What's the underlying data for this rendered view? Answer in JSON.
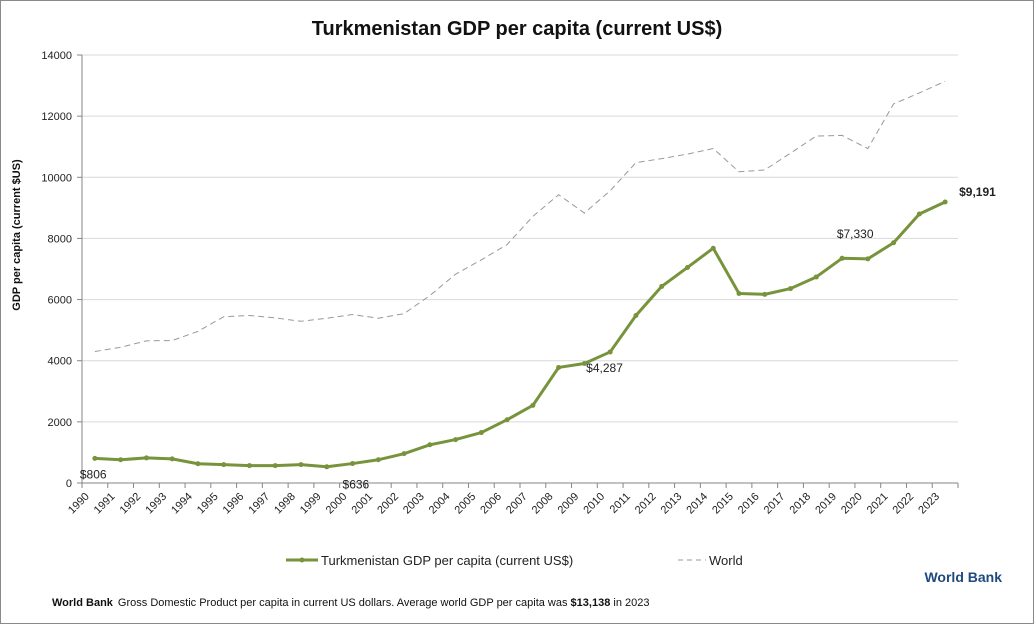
{
  "chart_data": {
    "type": "line",
    "title": "Turkmenistan GDP per capita (current US$)",
    "xlabel": "",
    "ylabel": "GDP per capita (current $US)",
    "ylim": [
      0,
      14000
    ],
    "yticks": [
      0,
      2000,
      4000,
      6000,
      8000,
      10000,
      12000,
      14000
    ],
    "grid": true,
    "legend_position": "bottom",
    "categories": [
      "1990",
      "1991",
      "1992",
      "1993",
      "1994",
      "1995",
      "1996",
      "1997",
      "1998",
      "1999",
      "2000",
      "2001",
      "2002",
      "2003",
      "2004",
      "2005",
      "2006",
      "2007",
      "2008",
      "2009",
      "2010",
      "2011",
      "2012",
      "2013",
      "2014",
      "2015",
      "2016",
      "2017",
      "2018",
      "2019",
      "2020",
      "2021",
      "2022",
      "2023"
    ],
    "series": [
      {
        "name": "Turkmenistan GDP per capita (current US$)",
        "color": "#77933c",
        "style": "solid-markers",
        "values": [
          806,
          760,
          820,
          790,
          630,
          600,
          570,
          570,
          600,
          530,
          636,
          760,
          960,
          1250,
          1420,
          1650,
          2070,
          2540,
          3780,
          3910,
          4287,
          5480,
          6430,
          7050,
          7680,
          6200,
          6170,
          6360,
          6740,
          7350,
          7330,
          7860,
          8800,
          9191
        ]
      },
      {
        "name": "World",
        "color": "#999999",
        "style": "dashed",
        "values": [
          4300,
          4440,
          4650,
          4660,
          4960,
          5440,
          5480,
          5400,
          5290,
          5390,
          5510,
          5390,
          5540,
          6130,
          6830,
          7300,
          7800,
          8720,
          9430,
          8830,
          9560,
          10480,
          10610,
          10760,
          10940,
          10180,
          10240,
          10790,
          11350,
          11370,
          10940,
          12400,
          12760,
          13138
        ]
      }
    ],
    "annotations": [
      {
        "text": "$806",
        "category": "1990"
      },
      {
        "text": "$636",
        "category": "2000"
      },
      {
        "text": "$4,287",
        "category": "2010"
      },
      {
        "text": "$7,330",
        "category": "2020"
      },
      {
        "text": "$9,191",
        "category": "2023",
        "bold": true
      }
    ]
  },
  "source_label": "World Bank",
  "footer": {
    "source": "World Bank",
    "text": "Gross Domestic Product per capita in current US dollars.  Average world GDP per capita was ",
    "highlight": "$13,138",
    "suffix": " in 2023"
  }
}
